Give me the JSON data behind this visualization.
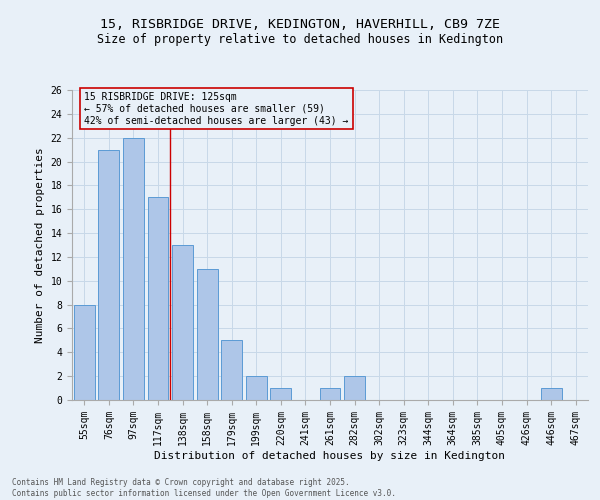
{
  "title_line1": "15, RISBRIDGE DRIVE, KEDINGTON, HAVERHILL, CB9 7ZE",
  "title_line2": "Size of property relative to detached houses in Kedington",
  "xlabel": "Distribution of detached houses by size in Kedington",
  "ylabel": "Number of detached properties",
  "bar_labels": [
    "55sqm",
    "76sqm",
    "97sqm",
    "117sqm",
    "138sqm",
    "158sqm",
    "179sqm",
    "199sqm",
    "220sqm",
    "241sqm",
    "261sqm",
    "282sqm",
    "302sqm",
    "323sqm",
    "344sqm",
    "364sqm",
    "385sqm",
    "405sqm",
    "426sqm",
    "446sqm",
    "467sqm"
  ],
  "bar_values": [
    8,
    21,
    22,
    17,
    13,
    11,
    5,
    2,
    1,
    0,
    1,
    2,
    0,
    0,
    0,
    0,
    0,
    0,
    0,
    1,
    0
  ],
  "bar_color": "#aec6e8",
  "bar_edge_color": "#5b9bd5",
  "grid_color": "#c8d8e8",
  "background_color": "#e8f0f8",
  "vline_x": 3.5,
  "vline_color": "#cc0000",
  "annotation_text": "15 RISBRIDGE DRIVE: 125sqm\n← 57% of detached houses are smaller (59)\n42% of semi-detached houses are larger (43) →",
  "annotation_box_edge": "#cc0000",
  "ylim": [
    0,
    26
  ],
  "yticks": [
    0,
    2,
    4,
    6,
    8,
    10,
    12,
    14,
    16,
    18,
    20,
    22,
    24,
    26
  ],
  "footnote_line1": "Contains HM Land Registry data © Crown copyright and database right 2025.",
  "footnote_line2": "Contains public sector information licensed under the Open Government Licence v3.0.",
  "title_fontsize": 9.5,
  "subtitle_fontsize": 8.5,
  "axis_label_fontsize": 8,
  "tick_fontsize": 7,
  "annotation_fontsize": 7,
  "footnote_fontsize": 5.5
}
